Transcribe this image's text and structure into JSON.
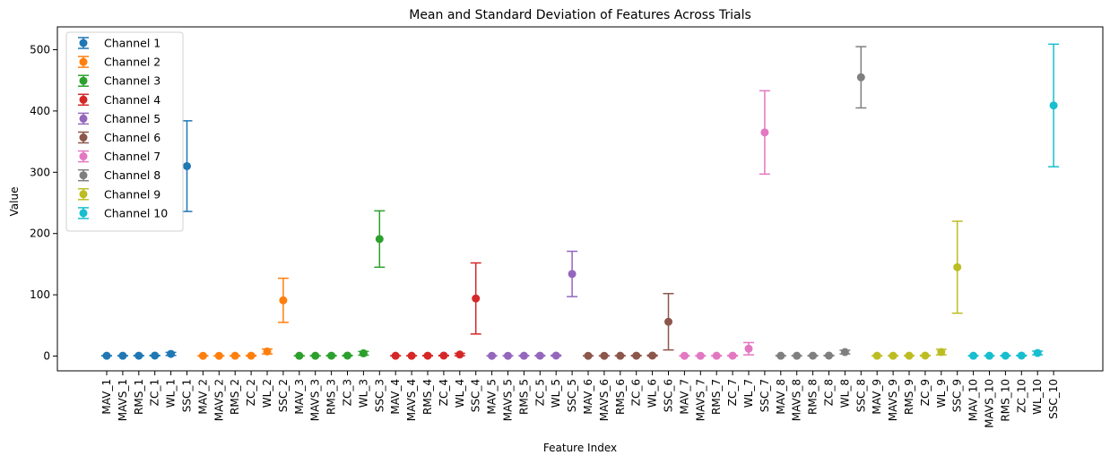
{
  "chart_data": {
    "type": "scatter",
    "title": "Mean and Standard Deviation of Features Across Trials",
    "xlabel": "Feature Index",
    "ylabel": "Value",
    "ylim": [
      -25,
      537
    ],
    "yticks": [
      0,
      100,
      200,
      300,
      400,
      500
    ],
    "grid": false,
    "legend_position": "upper-left",
    "categories": [
      "MAV_1",
      "MAVS_1",
      "RMS_1",
      "ZC_1",
      "WL_1",
      "SSC_1",
      "MAV_2",
      "MAVS_2",
      "RMS_2",
      "ZC_2",
      "WL_2",
      "SSC_2",
      "MAV_3",
      "MAVS_3",
      "RMS_3",
      "ZC_3",
      "WL_3",
      "SSC_3",
      "MAV_4",
      "MAVS_4",
      "RMS_4",
      "ZC_4",
      "WL_4",
      "SSC_4",
      "MAV_5",
      "MAVS_5",
      "RMS_5",
      "ZC_5",
      "WL_5",
      "SSC_5",
      "MAV_6",
      "MAVS_6",
      "RMS_6",
      "ZC_6",
      "WL_6",
      "SSC_6",
      "MAV_7",
      "MAVS_7",
      "RMS_7",
      "ZC_7",
      "WL_7",
      "SSC_7",
      "MAV_8",
      "MAVS_8",
      "RMS_8",
      "ZC_8",
      "WL_8",
      "SSC_8",
      "MAV_9",
      "MAVS_9",
      "RMS_9",
      "ZC_9",
      "WL_9",
      "SSC_9",
      "MAV_10",
      "MAVS_10",
      "RMS_10",
      "ZC_10",
      "WL_10",
      "SSC_10"
    ],
    "series": [
      {
        "name": "Channel 1",
        "color": "#1f77b4",
        "mean": [
          0.5,
          0.5,
          0.6,
          0.8,
          3.5,
          310
        ],
        "std": [
          0.2,
          0.2,
          0.3,
          0.4,
          2.5,
          74
        ]
      },
      {
        "name": "Channel 2",
        "color": "#ff7f0e",
        "mean": [
          0.4,
          0.4,
          0.5,
          0.6,
          7.5,
          91
        ],
        "std": [
          0.2,
          0.2,
          0.3,
          0.4,
          4,
          36
        ]
      },
      {
        "name": "Channel 3",
        "color": "#2ca02c",
        "mean": [
          0.5,
          0.5,
          0.6,
          0.8,
          4.5,
          191
        ],
        "std": [
          0.2,
          0.2,
          0.3,
          0.4,
          3,
          46
        ]
      },
      {
        "name": "Channel 4",
        "color": "#d62728",
        "mean": [
          0.5,
          0.5,
          0.6,
          0.8,
          2.5,
          94
        ],
        "std": [
          0.2,
          0.2,
          0.3,
          0.4,
          2,
          58
        ]
      },
      {
        "name": "Channel 5",
        "color": "#9467bd",
        "mean": [
          0.4,
          0.4,
          0.5,
          0.6,
          0.8,
          134
        ],
        "std": [
          0.2,
          0.2,
          0.3,
          0.4,
          0.8,
          37
        ]
      },
      {
        "name": "Channel 6",
        "color": "#8c564b",
        "mean": [
          0.4,
          0.4,
          0.5,
          0.6,
          0.8,
          56
        ],
        "std": [
          0.2,
          0.2,
          0.3,
          0.4,
          0.8,
          46
        ]
      },
      {
        "name": "Channel 7",
        "color": "#e377c2",
        "mean": [
          0.4,
          0.4,
          0.5,
          0.6,
          12,
          365
        ],
        "std": [
          0.2,
          0.2,
          0.3,
          0.4,
          10,
          68
        ]
      },
      {
        "name": "Channel 8",
        "color": "#7f7f7f",
        "mean": [
          0.5,
          0.5,
          0.6,
          0.8,
          6.5,
          455
        ],
        "std": [
          0.2,
          0.2,
          0.3,
          0.4,
          3,
          50
        ]
      },
      {
        "name": "Channel 9",
        "color": "#bcbd22",
        "mean": [
          0.5,
          0.5,
          0.6,
          0.8,
          6.5,
          145
        ],
        "std": [
          0.2,
          0.2,
          0.3,
          0.4,
          4.5,
          75
        ]
      },
      {
        "name": "Channel 10",
        "color": "#17becf",
        "mean": [
          0.5,
          0.5,
          0.6,
          0.8,
          5,
          409
        ],
        "std": [
          0.2,
          0.2,
          0.3,
          0.4,
          3,
          100
        ]
      }
    ]
  }
}
